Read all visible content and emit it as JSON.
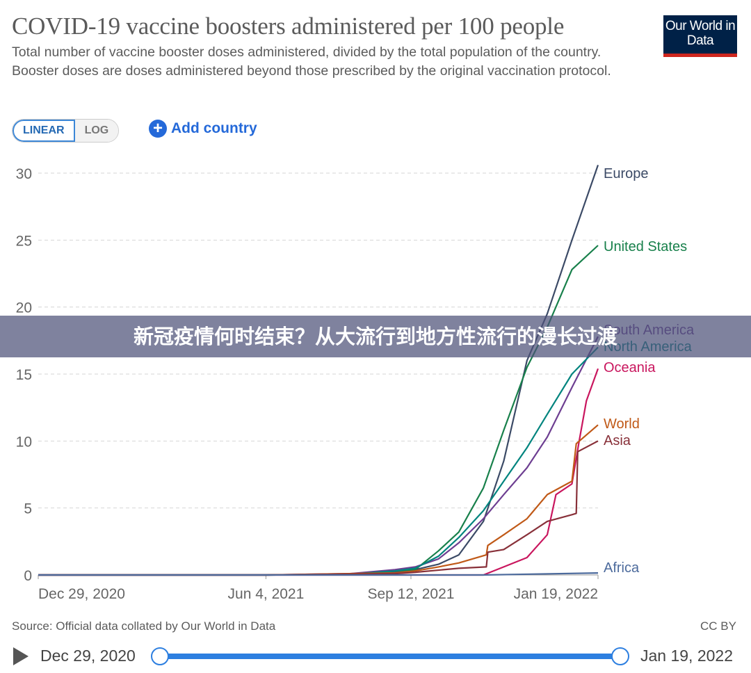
{
  "header": {
    "title": "COVID-19 vaccine boosters administered per 100 people",
    "subtitle": "Total number of vaccine booster doses administered, divided by the total population of the country. Booster doses are doses administered beyond those prescribed by the original vaccination protocol.",
    "logo": "Our World in Data"
  },
  "controls": {
    "linear": "LINEAR",
    "log": "LOG",
    "add_country": "Add country",
    "add_icon": "plus-circle-icon"
  },
  "banner": "新冠疫情何时结束？从大流行到地方性流行的漫长过渡",
  "footer": {
    "source": "Source: Official data collated by Our World in Data",
    "license": "CC BY"
  },
  "timeline": {
    "start": "Dec 29, 2020",
    "end": "Jan 19, 2022"
  },
  "chart_data": {
    "type": "line",
    "title": "COVID-19 vaccine boosters administered per 100 people",
    "ylim": [
      0,
      30
    ],
    "yticks": [
      "0",
      "5",
      "10",
      "15",
      "20",
      "25",
      "30"
    ],
    "xlim": [
      "2020-12-29",
      "2022-01-19"
    ],
    "xticks": [
      {
        "date": "2020-12-29",
        "label": "Dec 29, 2020"
      },
      {
        "date": "2021-06-04",
        "label": "Jun 4, 2021"
      },
      {
        "date": "2021-09-12",
        "label": "Sep 12, 2021"
      },
      {
        "date": "2022-01-19",
        "label": "Jan 19, 2022"
      }
    ],
    "grid": "horizontal dashed",
    "legend": "line-end labels",
    "series": [
      {
        "name": "Europe",
        "color": "#3b4a66",
        "x": [
          "2020-12-29",
          "2021-06-04",
          "2021-08-01",
          "2021-09-01",
          "2021-09-15",
          "2021-10-01",
          "2021-10-15",
          "2021-11-01",
          "2021-11-15",
          "2021-12-01",
          "2021-12-15",
          "2022-01-01",
          "2022-01-19"
        ],
        "y": [
          0,
          0,
          0.05,
          0.2,
          0.4,
          0.8,
          1.5,
          4,
          8.5,
          16,
          19.5,
          25,
          30.6
        ]
      },
      {
        "name": "United States",
        "color": "#18804b",
        "x": [
          "2020-12-29",
          "2021-06-04",
          "2021-08-01",
          "2021-09-01",
          "2021-09-15",
          "2021-10-01",
          "2021-10-15",
          "2021-11-01",
          "2021-11-15",
          "2021-12-01",
          "2021-12-15",
          "2022-01-01",
          "2022-01-19"
        ],
        "y": [
          0,
          0,
          0.05,
          0.3,
          0.4,
          1.8,
          3.2,
          6.5,
          10.8,
          15.5,
          18.5,
          22.8,
          24.6
        ]
      },
      {
        "name": "South America",
        "color": "#6d3e91",
        "x": [
          "2020-12-29",
          "2021-06-04",
          "2021-08-01",
          "2021-09-01",
          "2021-09-15",
          "2021-10-01",
          "2021-10-15",
          "2021-11-01",
          "2021-11-15",
          "2021-12-01",
          "2021-12-15",
          "2022-01-01",
          "2022-01-19"
        ],
        "y": [
          0,
          0,
          0.1,
          0.4,
          0.6,
          1.2,
          2.4,
          4.2,
          6,
          8,
          10.3,
          14,
          17.8
        ]
      },
      {
        "name": "North America",
        "color": "#00847e",
        "x": [
          "2020-12-29",
          "2021-06-04",
          "2021-08-01",
          "2021-09-01",
          "2021-09-15",
          "2021-10-01",
          "2021-10-15",
          "2021-11-01",
          "2021-11-15",
          "2021-12-01",
          "2021-12-15",
          "2022-01-01",
          "2022-01-19"
        ],
        "y": [
          0,
          0,
          0.05,
          0.3,
          0.5,
          1.4,
          2.8,
          4.8,
          7,
          9.5,
          12,
          15,
          17
        ]
      },
      {
        "name": "Oceania",
        "color": "#c9165e",
        "x": [
          "2020-12-29",
          "2021-11-01",
          "2021-11-15",
          "2021-12-01",
          "2021-12-15",
          "2021-12-21",
          "2022-01-01",
          "2022-01-06",
          "2022-01-11",
          "2022-01-19"
        ],
        "y": [
          0,
          0,
          0.6,
          1.3,
          3,
          6,
          6.8,
          10,
          13,
          15.4
        ]
      },
      {
        "name": "World",
        "color": "#c05917",
        "x": [
          "2020-12-29",
          "2021-06-04",
          "2021-09-01",
          "2021-09-15",
          "2021-10-01",
          "2021-10-15",
          "2021-11-03",
          "2021-11-04",
          "2021-11-15",
          "2021-12-01",
          "2021-12-15",
          "2022-01-01",
          "2022-01-04",
          "2022-01-19"
        ],
        "y": [
          0,
          0,
          0.15,
          0.3,
          0.6,
          0.9,
          1.5,
          2.2,
          3,
          4.2,
          6,
          7,
          9.8,
          11.2
        ]
      },
      {
        "name": "Asia",
        "color": "#883039",
        "x": [
          "2020-12-29",
          "2021-06-04",
          "2021-09-01",
          "2021-09-15",
          "2021-10-15",
          "2021-11-03",
          "2021-11-04",
          "2021-11-15",
          "2021-12-01",
          "2021-12-15",
          "2022-01-01",
          "2022-01-04",
          "2022-01-05",
          "2022-01-19"
        ],
        "y": [
          0,
          0,
          0.1,
          0.2,
          0.5,
          0.6,
          1.7,
          1.9,
          3,
          4,
          4.5,
          4.6,
          9.2,
          10
        ]
      },
      {
        "name": "Africa",
        "color": "#4c6a9c",
        "x": [
          "2020-12-29",
          "2021-11-01",
          "2022-01-19"
        ],
        "y": [
          0,
          0,
          0.15
        ]
      }
    ]
  }
}
